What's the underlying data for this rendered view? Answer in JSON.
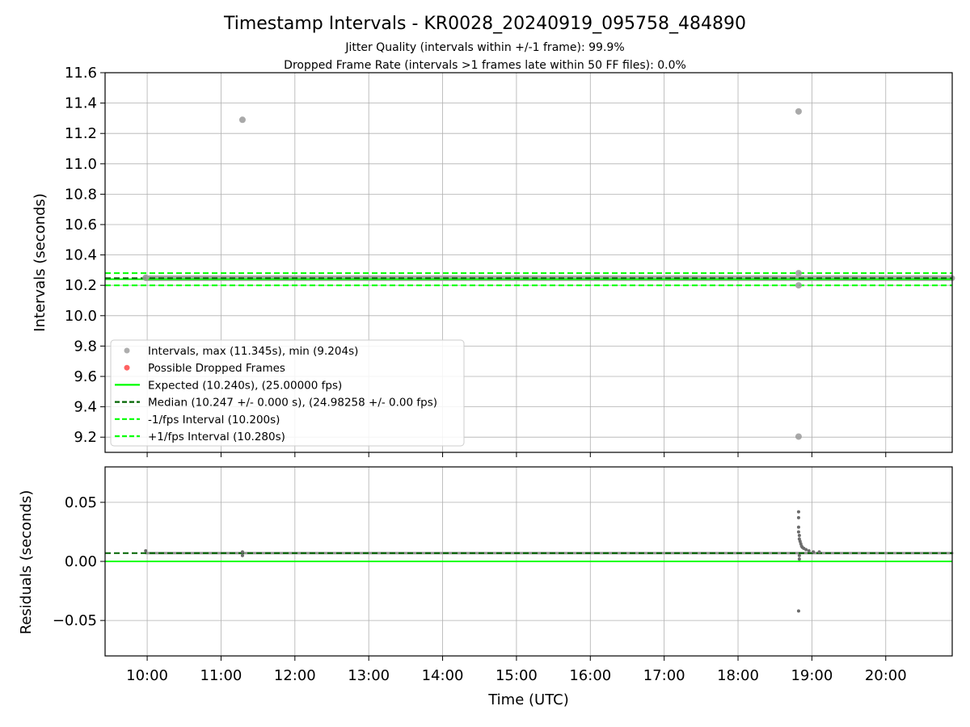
{
  "chart_data": {
    "type": "scatter",
    "title": "Timestamp Intervals - KR0028_20240919_095758_484890",
    "subtitle_lines": [
      "Jitter Quality (intervals within +/-1 frame): 99.9%",
      "Dropped Frame Rate (intervals >1 frames late within 50 FF files): 0.0%"
    ],
    "xlabel": "Time (UTC)",
    "x_range_hours": [
      9.43,
      20.9
    ],
    "x_ticks": [
      {
        "value": 10,
        "label": "10:00"
      },
      {
        "value": 11,
        "label": "11:00"
      },
      {
        "value": 12,
        "label": "12:00"
      },
      {
        "value": 13,
        "label": "13:00"
      },
      {
        "value": 14,
        "label": "14:00"
      },
      {
        "value": 15,
        "label": "15:00"
      },
      {
        "value": 16,
        "label": "16:00"
      },
      {
        "value": 17,
        "label": "17:00"
      },
      {
        "value": 18,
        "label": "18:00"
      },
      {
        "value": 19,
        "label": "19:00"
      },
      {
        "value": 20,
        "label": "20:00"
      }
    ],
    "grid": true,
    "panels": [
      {
        "name": "intervals",
        "ylabel": "Intervals (seconds)",
        "ylim": [
          9.1,
          11.6
        ],
        "y_ticks": [
          {
            "value": 9.2,
            "label": "9.2"
          },
          {
            "value": 9.4,
            "label": "9.4"
          },
          {
            "value": 9.6,
            "label": "9.6"
          },
          {
            "value": 9.8,
            "label": "9.8"
          },
          {
            "value": 10.0,
            "label": "10.0"
          },
          {
            "value": 10.2,
            "label": "10.2"
          },
          {
            "value": 10.4,
            "label": "10.4"
          },
          {
            "value": 10.6,
            "label": "10.6"
          },
          {
            "value": 10.8,
            "label": "10.8"
          },
          {
            "value": 11.0,
            "label": "11.0"
          },
          {
            "value": 11.2,
            "label": "11.2"
          },
          {
            "value": 11.4,
            "label": "11.4"
          },
          {
            "value": 11.6,
            "label": "11.6"
          }
        ],
        "lines": [
          {
            "name": "Expected (10.240s), (25.00000 fps)",
            "y": 10.24,
            "color": "#00ff00",
            "style": "solid"
          },
          {
            "name": "Median (10.247 +/- 0.000 s), (24.98258 +/- 0.00 fps)",
            "y": 10.247,
            "color": "#006400",
            "style": "dashed"
          },
          {
            "name": "-1/fps Interval (10.200s)",
            "y": 10.2,
            "color": "#00ff00",
            "style": "dashed"
          },
          {
            "name": "+1/fps Interval (10.280s)",
            "y": 10.28,
            "color": "#00ff00",
            "style": "dashed"
          }
        ],
        "band": {
          "x_from": 9.98,
          "x_to": 20.9,
          "y": 10.247,
          "color": "#9a9a9a"
        },
        "points": [
          {
            "x": 9.98,
            "y": 10.25
          },
          {
            "x": 11.29,
            "y": 11.29
          },
          {
            "x": 18.82,
            "y": 11.345
          },
          {
            "x": 18.82,
            "y": 10.28
          },
          {
            "x": 18.82,
            "y": 10.2
          },
          {
            "x": 18.82,
            "y": 9.204
          }
        ],
        "legend": {
          "placement": "lower-left",
          "entries": [
            {
              "label": "Intervals, max (11.345s), min (9.204s)",
              "kind": "marker",
              "color": "#9a9a9a"
            },
            {
              "label": "Possible Dropped Frames",
              "kind": "marker",
              "color": "#ff3b3b"
            },
            {
              "label": "Expected (10.240s), (25.00000 fps)",
              "kind": "line",
              "color": "#00ff00",
              "dash": false
            },
            {
              "label": "Median (10.247 +/- 0.000 s), (24.98258 +/- 0.00 fps)",
              "kind": "line",
              "color": "#006400",
              "dash": true
            },
            {
              "label": "-1/fps Interval (10.200s)",
              "kind": "line",
              "color": "#00ff00",
              "dash": true
            },
            {
              "label": "+1/fps Interval (10.280s)",
              "kind": "line",
              "color": "#00ff00",
              "dash": true
            }
          ]
        }
      },
      {
        "name": "residuals",
        "ylabel": "Residuals (seconds)",
        "ylim": [
          -0.08,
          0.08
        ],
        "y_ticks": [
          {
            "value": -0.05,
            "label": "−0.05"
          },
          {
            "value": 0.0,
            "label": "0.00"
          },
          {
            "value": 0.05,
            "label": "0.05"
          }
        ],
        "lines": [
          {
            "name": "expected",
            "y": 0.0,
            "color": "#00ff00",
            "style": "solid"
          },
          {
            "name": "median",
            "y": 0.007,
            "color": "#006400",
            "style": "dashed"
          }
        ],
        "band": {
          "x_from": 9.98,
          "x_to": 20.9,
          "y": 0.007,
          "color": "#808080"
        },
        "points": [
          {
            "x": 9.98,
            "y": 0.009
          },
          {
            "x": 11.29,
            "y": 0.008
          },
          {
            "x": 11.29,
            "y": 0.005
          },
          {
            "x": 18.82,
            "y": 0.042
          },
          {
            "x": 18.82,
            "y": 0.037
          },
          {
            "x": 18.82,
            "y": 0.029
          },
          {
            "x": 18.82,
            "y": 0.025
          },
          {
            "x": 18.83,
            "y": 0.022
          },
          {
            "x": 18.83,
            "y": 0.019
          },
          {
            "x": 18.84,
            "y": 0.017
          },
          {
            "x": 18.85,
            "y": 0.015
          },
          {
            "x": 18.86,
            "y": 0.013
          },
          {
            "x": 18.87,
            "y": 0.012
          },
          {
            "x": 18.89,
            "y": 0.011
          },
          {
            "x": 18.92,
            "y": 0.01
          },
          {
            "x": 18.96,
            "y": 0.009
          },
          {
            "x": 19.02,
            "y": 0.008
          },
          {
            "x": 19.1,
            "y": 0.008
          },
          {
            "x": 18.83,
            "y": 0.005
          },
          {
            "x": 18.83,
            "y": 0.002
          },
          {
            "x": 18.82,
            "y": -0.042
          }
        ]
      }
    ]
  }
}
